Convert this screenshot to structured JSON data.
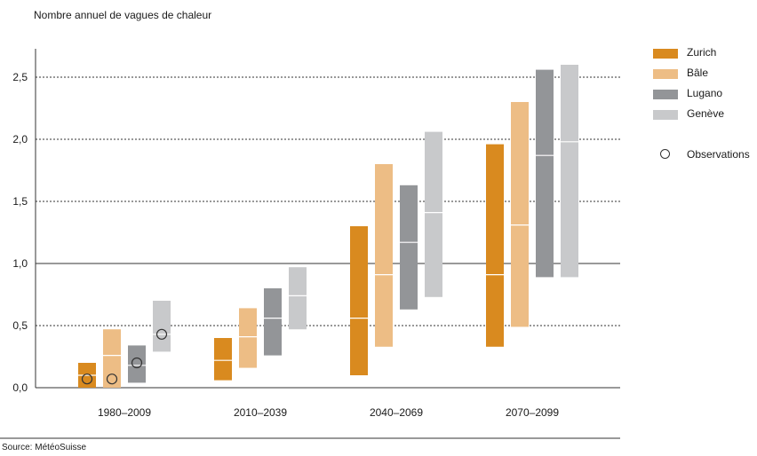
{
  "chart_data": {
    "type": "bar",
    "subtype": "range-bars",
    "ylabel": "Nombre annuel de vagues de chaleur",
    "source": "Source: MétéoSuisse",
    "ylim": [
      0,
      2.7
    ],
    "yticks": [
      "0,0",
      "0,5",
      "1,0",
      "1,5",
      "2,0",
      "2,5"
    ],
    "categories": [
      "1980–2009",
      "2010–2039",
      "2040–2069",
      "2070–2099"
    ],
    "series": [
      {
        "name": "Zurich",
        "color": "#d98a1f",
        "ranges": [
          [
            0.0,
            0.2,
            0.1
          ],
          [
            0.06,
            0.4,
            0.22
          ],
          [
            0.1,
            1.3,
            0.56
          ],
          [
            0.33,
            1.96,
            0.91
          ]
        ],
        "observation": 0.07
      },
      {
        "name": "Bâle",
        "color": "#edbd85",
        "ranges": [
          [
            0.0,
            0.47,
            0.26
          ],
          [
            0.16,
            0.64,
            0.41
          ],
          [
            0.33,
            1.8,
            0.91
          ],
          [
            0.49,
            2.3,
            1.31
          ]
        ],
        "observation": 0.07
      },
      {
        "name": "Lugano",
        "color": "#939598",
        "ranges": [
          [
            0.04,
            0.34,
            0.18
          ],
          [
            0.26,
            0.8,
            0.56
          ],
          [
            0.63,
            1.63,
            1.17
          ],
          [
            0.89,
            2.56,
            1.87
          ]
        ],
        "observation": 0.2
      },
      {
        "name": "Genève",
        "color": "#c8c9cb",
        "ranges": [
          [
            0.29,
            0.7,
            0.43
          ],
          [
            0.47,
            0.97,
            0.74
          ],
          [
            0.73,
            2.06,
            1.41
          ],
          [
            0.89,
            2.6,
            1.98
          ]
        ],
        "observation": 0.43
      }
    ],
    "observations_label": "Observations"
  }
}
